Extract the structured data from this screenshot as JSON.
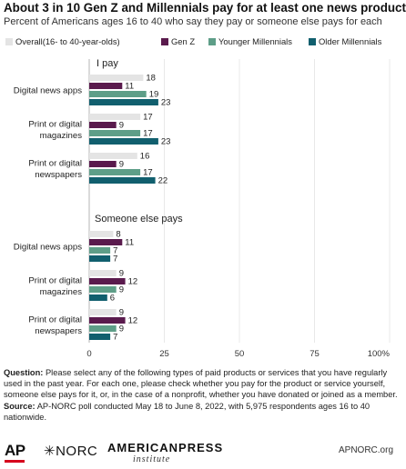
{
  "header": {
    "title": "About 3 in 10 Gen Z and Millennials pay for at least one news product.",
    "subtitle": "Percent of Americans ages 16 to 40 who say they pay or someone else pays for each"
  },
  "colors": {
    "overall": "#e4e4e4",
    "gen_z": "#5a1a4d",
    "younger_millennials": "#5e9e88",
    "older_millennials": "#115f6e"
  },
  "chart_data": {
    "type": "bar",
    "orientation": "horizontal",
    "xlim": [
      0,
      100
    ],
    "x_ticks": [
      "0",
      "25",
      "50",
      "75",
      "100%"
    ],
    "legend_position": "top",
    "series": [
      {
        "name": "Overall(16- to 40-year-olds)",
        "color": "#e4e4e4"
      },
      {
        "name": "Gen Z",
        "color": "#5a1a4d"
      },
      {
        "name": "Younger Millennials",
        "color": "#5e9e88"
      },
      {
        "name": "Older Millennials",
        "color": "#115f6e"
      }
    ],
    "panels": [
      {
        "label": "I pay",
        "groups": [
          {
            "label": [
              "Digital news apps"
            ],
            "values": [
              18,
              11,
              19,
              23
            ]
          },
          {
            "label": [
              "Print or digital",
              "magazines"
            ],
            "values": [
              17,
              9,
              17,
              23
            ]
          },
          {
            "label": [
              "Print or digital",
              "newspapers"
            ],
            "values": [
              16,
              9,
              17,
              22
            ]
          }
        ]
      },
      {
        "label": "Someone else pays",
        "groups": [
          {
            "label": [
              "Digital news apps"
            ],
            "values": [
              8,
              11,
              7,
              7
            ]
          },
          {
            "label": [
              "Print or digital",
              "magazines"
            ],
            "values": [
              9,
              12,
              9,
              6
            ]
          },
          {
            "label": [
              "Print or digital",
              "newspapers"
            ],
            "values": [
              9,
              12,
              9,
              7
            ]
          }
        ]
      }
    ]
  },
  "footer": {
    "question_label": "Question:",
    "question_text": " Please select any of the following types of paid products or services that you have regularly used in the past year. For each one, please check whether you pay for the product or service yourself, someone else pays for it, or, in the case of a nonprofit, whether you have donated or joined as a member.",
    "source_label": "Source:",
    "source_text": " AP-NORC poll conducted May 18 to June 8, 2022, with 5,975 respondents ages 16 to 40 nationwide."
  },
  "logos": {
    "ap": "AP",
    "norc": "✳NORC",
    "api_top": "AMERICANPRESS",
    "api_bottom": "institute",
    "site": "APNORC.org"
  }
}
